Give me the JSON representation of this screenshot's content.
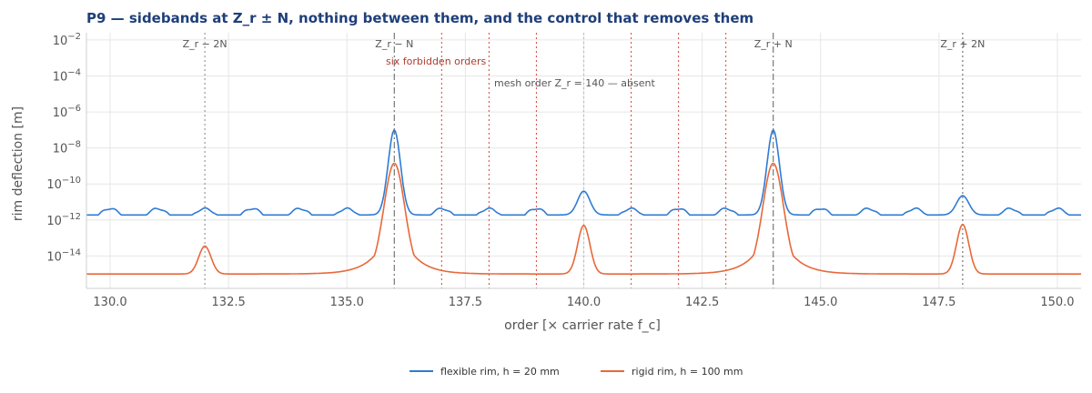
{
  "chart_data": {
    "type": "line",
    "title": "P9 — sidebands at Z_r ± N, nothing between them, and the control that removes them",
    "xlabel": "order  [× carrier rate f_c]",
    "ylabel": "rim deflection  [m]",
    "xlim": [
      129.5,
      150.5
    ],
    "ylim_log10": [
      -15.8,
      -1.6
    ],
    "yscale": "log",
    "grid": true,
    "legend_position": "bottom-center",
    "x_ticks": [
      {
        "value": 130.0,
        "label": "130.0"
      },
      {
        "value": 132.5,
        "label": "132.5"
      },
      {
        "value": 135.0,
        "label": "135.0"
      },
      {
        "value": 137.5,
        "label": "137.5"
      },
      {
        "value": 140.0,
        "label": "140.0"
      },
      {
        "value": 142.5,
        "label": "142.5"
      },
      {
        "value": 145.0,
        "label": "145.0"
      },
      {
        "value": 147.5,
        "label": "147.5"
      },
      {
        "value": 150.0,
        "label": "150.0"
      }
    ],
    "y_ticks": [
      {
        "exp": -14,
        "base": "10",
        "power": "−14"
      },
      {
        "exp": -12,
        "base": "10",
        "power": "−12"
      },
      {
        "exp": -10,
        "base": "10",
        "power": "−10"
      },
      {
        "exp": -8,
        "base": "10",
        "power": "−8"
      },
      {
        "exp": -6,
        "base": "10",
        "power": "−6"
      },
      {
        "exp": -4,
        "base": "10",
        "power": "−4"
      },
      {
        "exp": -2,
        "base": "10",
        "power": "−2"
      }
    ],
    "vlines": [
      {
        "x": 132,
        "label": "Z_r − 2N",
        "style": "dotted",
        "color": "#9a9a9a"
      },
      {
        "x": 136,
        "label": "Z_r − N",
        "style": "dashdot",
        "color": "#777777"
      },
      {
        "x": 144,
        "label": "Z_r + N",
        "style": "dashdot",
        "color": "#777777"
      },
      {
        "x": 148,
        "label": "Z_r + 2N",
        "style": "dotted",
        "color": "#777777"
      },
      {
        "x": 140,
        "label": "",
        "style": "dotted",
        "color": "#bbbbbb"
      }
    ],
    "forbidden_orders": [
      137,
      138,
      139,
      141,
      142,
      143
    ],
    "forbidden_color": "#d9534f",
    "annotations": {
      "forbidden": "six forbidden orders",
      "mesh": "mesh order Z_r = 140 — absent"
    },
    "series": [
      {
        "name": "flexible rim, h = 20 mm",
        "color": "#2f7bd3",
        "floor_log10": -11.72,
        "floor_ripple": 0.35,
        "peaks": [
          {
            "x": 136,
            "log10": -7.0
          },
          {
            "x": 144,
            "log10": -7.0
          },
          {
            "x": 140,
            "log10": -10.4
          },
          {
            "x": 148,
            "log10": -10.65
          }
        ],
        "x": [
          129.5,
          130.0,
          130.5,
          131.0,
          131.5,
          132.0,
          132.5,
          133.0,
          133.5,
          134.0,
          134.5,
          135.0,
          135.5,
          135.8,
          136.0,
          136.2,
          136.5,
          137.0,
          137.5,
          138.0,
          138.5,
          139.0,
          139.5,
          140.0,
          140.5,
          141.0,
          141.5,
          142.0,
          142.5,
          143.0,
          143.5,
          143.8,
          144.0,
          144.2,
          144.5,
          145.0,
          145.5,
          146.0,
          146.5,
          147.0,
          147.5,
          148.0,
          148.5,
          149.0,
          149.5,
          150.0,
          150.5
        ],
        "y": [
          3.2e-12,
          1.4e-12,
          3.3e-12,
          1.4e-12,
          3.2e-12,
          3e-12,
          3.3e-12,
          1.4e-12,
          3.2e-12,
          1.6e-12,
          3.5e-12,
          4e-12,
          5e-11,
          1e-08,
          1e-07,
          1e-08,
          5e-11,
          4e-12,
          3.3e-12,
          1.4e-12,
          3.3e-12,
          1.4e-12,
          3e-12,
          4e-11,
          3e-12,
          1.4e-12,
          3.3e-12,
          1.4e-12,
          3e-12,
          3.5e-12,
          5e-11,
          1e-08,
          1e-07,
          1e-08,
          5e-11,
          4e-12,
          3.3e-12,
          1.4e-12,
          3.3e-12,
          1.4e-12,
          3e-12,
          2.2e-11,
          3e-12,
          1.4e-12,
          3.3e-12,
          1.4e-12,
          3.2e-12
        ]
      },
      {
        "name": "rigid rim, h = 100 mm",
        "color": "#e8683a",
        "floor_log10": -15.0,
        "floor_ripple": 0.0,
        "peaks": [
          {
            "x": 136,
            "log10": -8.85
          },
          {
            "x": 144,
            "log10": -8.85
          },
          {
            "x": 140,
            "log10": -12.3
          },
          {
            "x": 132,
            "log10": -13.45
          },
          {
            "x": 148,
            "log10": -12.25
          }
        ],
        "x": [
          129.5,
          131.5,
          131.75,
          132.0,
          132.25,
          132.5,
          134.5,
          135.0,
          135.5,
          135.8,
          136.0,
          136.2,
          136.5,
          137.0,
          139.5,
          139.8,
          140.0,
          140.2,
          140.5,
          142.5,
          143.0,
          143.5,
          143.8,
          144.0,
          144.2,
          144.5,
          145.0,
          147.5,
          147.75,
          148.0,
          148.25,
          148.5,
          150.5
        ],
        "y": [
          1e-15,
          1e-15,
          1e-14,
          3.5e-14,
          1e-14,
          1e-15,
          1e-15,
          3e-15,
          1e-13,
          1e-10,
          1.4e-09,
          1e-10,
          1e-13,
          3e-15,
          1e-15,
          1e-13,
          5e-13,
          1e-13,
          1e-15,
          1e-15,
          3e-15,
          1e-13,
          1e-10,
          1.4e-09,
          1e-10,
          1e-13,
          3e-15,
          1e-15,
          1e-13,
          5.6e-13,
          1e-13,
          1e-15,
          1e-15
        ]
      }
    ]
  }
}
